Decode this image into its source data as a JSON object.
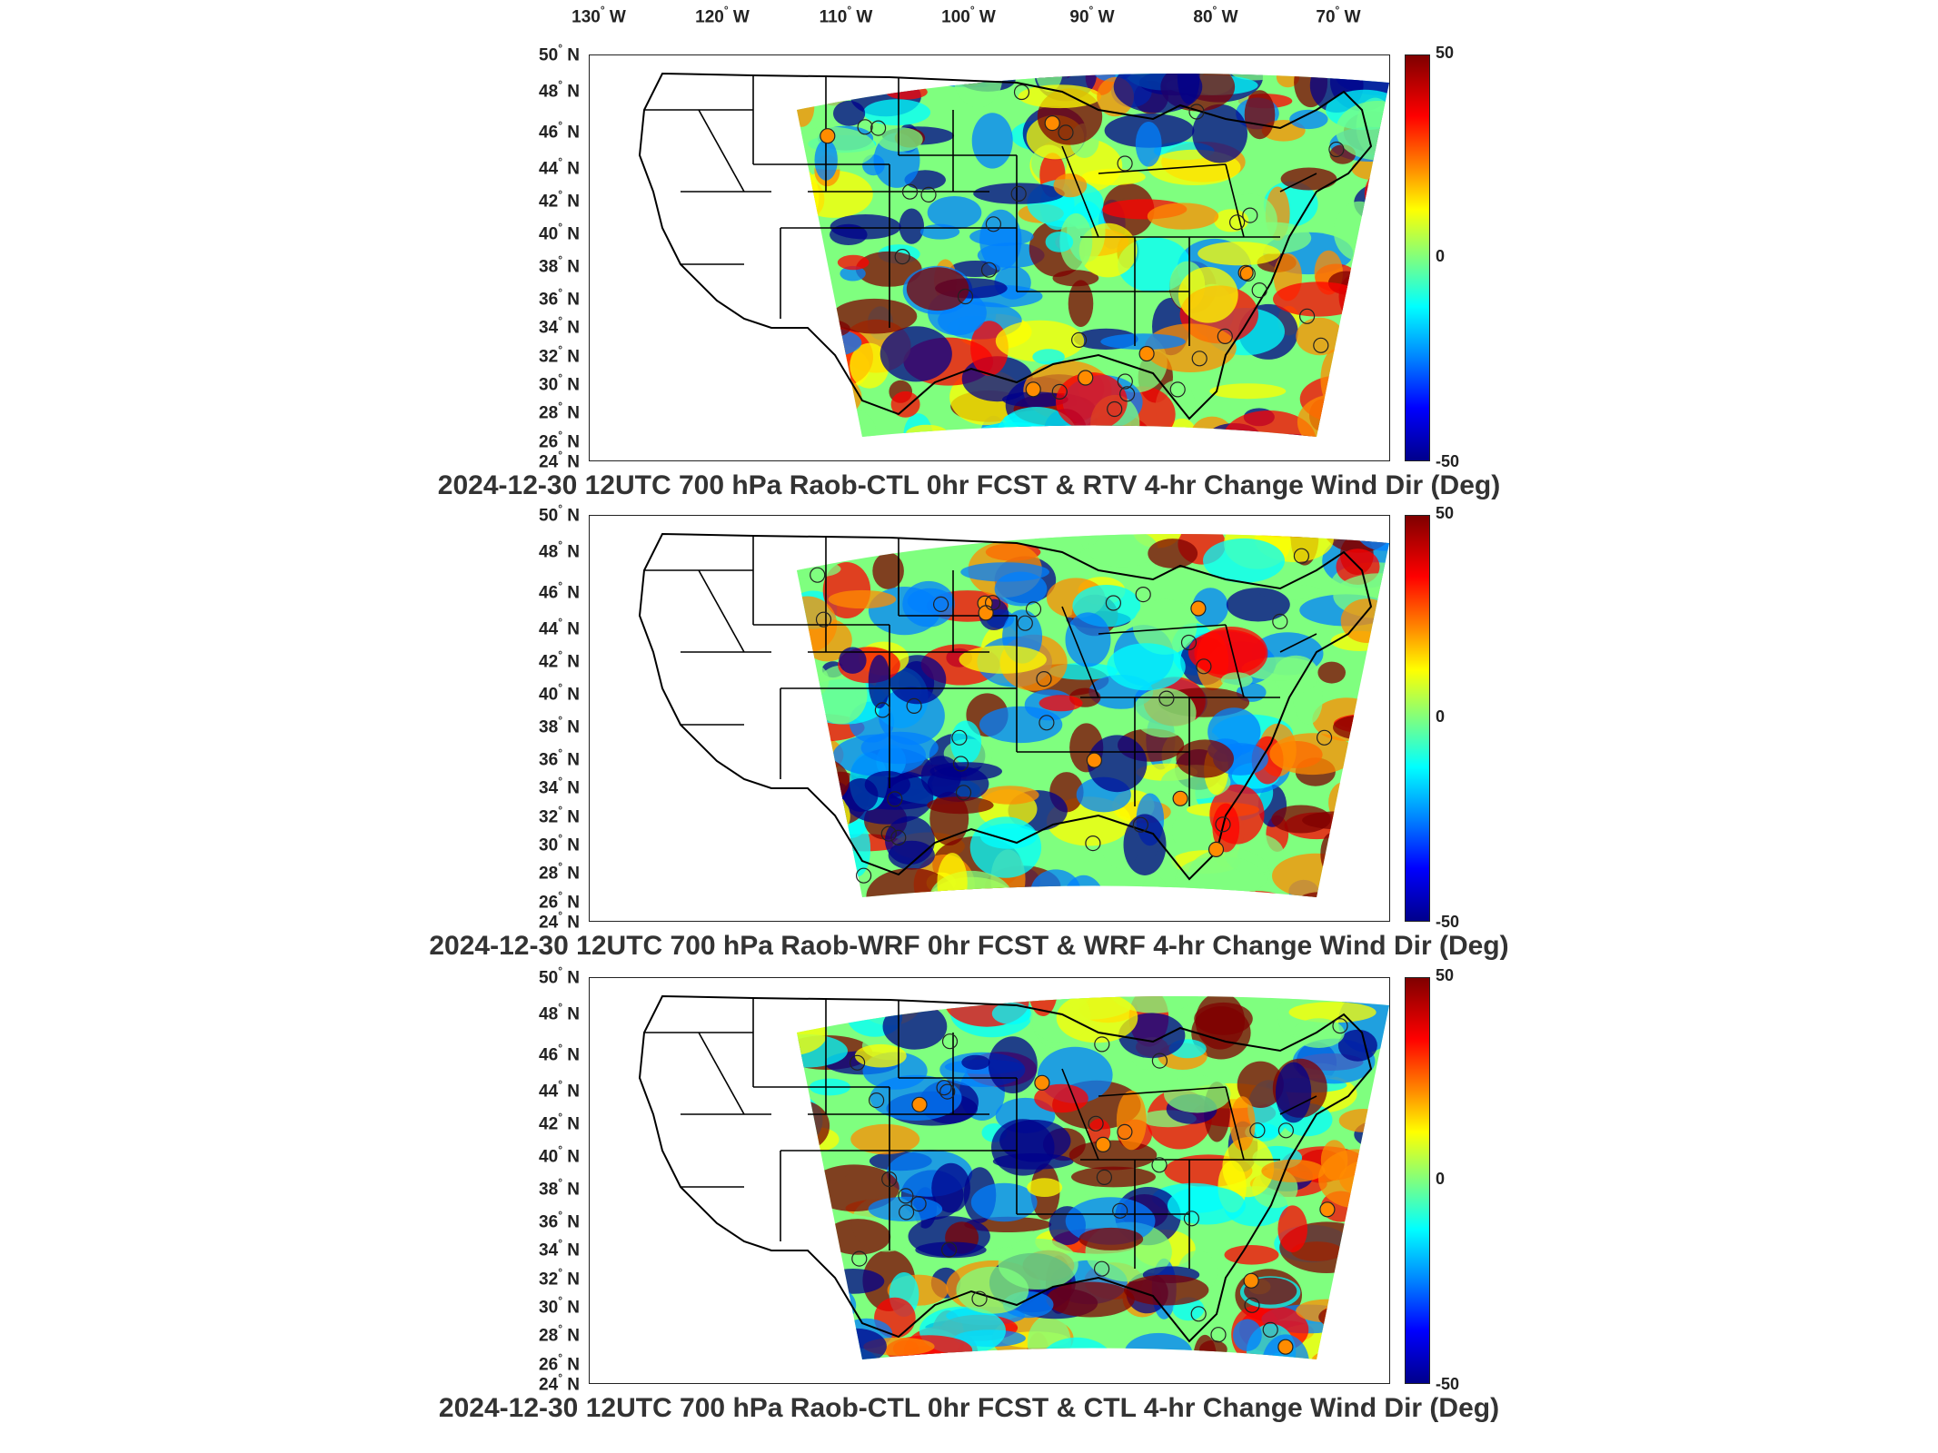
{
  "figure": {
    "lon_labels": [
      "130",
      "120",
      "110",
      "100",
      "90",
      "80",
      "70"
    ],
    "lon_suffix": "W",
    "lat_labels": [
      "50",
      "48",
      "46",
      "44",
      "42",
      "40",
      "38",
      "36",
      "34",
      "32",
      "30",
      "28",
      "26",
      "24"
    ],
    "lat_suffix": "N",
    "colorbar": {
      "max_label": "50",
      "mid_label": "0",
      "min_label": "-50",
      "colormap": "jet"
    },
    "panels": [
      {
        "title": "2024-12-30 12UTC 700 hPa Raob-CTL 0hr FCST & RTV 4-hr Change Wind Dir (Deg)"
      },
      {
        "title": "2024-12-30 12UTC 700 hPa Raob-WRF 0hr FCST & WRF 4-hr Change Wind Dir (Deg)"
      },
      {
        "title": "2024-12-30 12UTC 700 hPa Raob-CTL 0hr FCST & CTL 4-hr Change Wind Dir (Deg)"
      }
    ]
  },
  "colors": {
    "dark_red": "#7f0000",
    "red": "#ff0000",
    "orange": "#ff8c00",
    "yellow": "#ffff00",
    "green": "#7fff7f",
    "cyan": "#00ffff",
    "blue": "#0080ff",
    "dark_blue": "#00008b"
  }
}
